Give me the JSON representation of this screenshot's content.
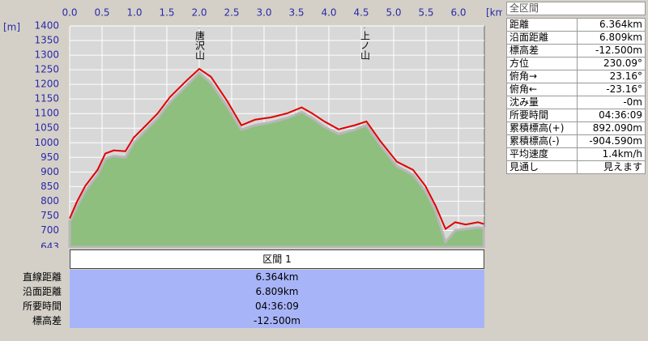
{
  "chart_data": {
    "type": "line",
    "y_label": "[m]",
    "x_label": "[km]",
    "x": [
      0,
      0.11,
      0.24,
      0.43,
      0.55,
      0.68,
      0.86,
      0.99,
      1.18,
      1.36,
      1.55,
      1.8,
      2.0,
      2.18,
      2.43,
      2.65,
      2.86,
      3.11,
      3.36,
      3.58,
      3.74,
      3.93,
      4.15,
      4.4,
      4.58,
      4.8,
      5.05,
      5.3,
      5.49,
      5.65,
      5.8,
      5.95,
      6.11,
      6.3,
      6.39
    ],
    "series": [
      {
        "color": "#8fbf7f",
        "fill": true,
        "values": [
          730,
          780,
          835,
          890,
          945,
          955,
          950,
          1000,
          1045,
          1085,
          1140,
          1195,
          1240,
          1205,
          1125,
          1045,
          1060,
          1070,
          1085,
          1105,
          1085,
          1055,
          1030,
          1045,
          1060,
          990,
          920,
          890,
          835,
          765,
          660,
          700,
          705,
          710,
          708
        ]
      },
      {
        "color": "#e00000",
        "values": [
          741,
          797,
          852,
          907,
          963,
          974,
          971,
          1018,
          1060,
          1101,
          1157,
          1212,
          1253,
          1226,
          1143,
          1060,
          1079,
          1087,
          1101,
          1121,
          1101,
          1073,
          1046,
          1060,
          1073,
          1004,
          935,
          907,
          852,
          783,
          705,
          728,
          720,
          728,
          722
        ]
      }
    ],
    "annotations": [
      {
        "text": "唐沢山",
        "x": 2.0
      },
      {
        "text": "上ノ山",
        "x": 4.55
      }
    ],
    "xlim": [
      0,
      6.4
    ],
    "ylim": [
      643,
      1400
    ],
    "xticks": [
      {
        "value": 0,
        "label": "0.0"
      },
      0.5,
      {
        "value": 1,
        "label": "1.0"
      },
      1.5,
      {
        "value": 2,
        "label": "2.0"
      },
      2.5,
      {
        "value": 3,
        "label": "3.0"
      },
      3.5,
      {
        "value": 4,
        "label": "4.0"
      },
      4.5,
      {
        "value": 5,
        "label": "5.0"
      },
      5.5,
      {
        "value": 6,
        "label": "6.0"
      }
    ],
    "yticks": [
      643,
      700,
      750,
      800,
      850,
      900,
      950,
      1000,
      1050,
      1100,
      1150,
      1200,
      1250,
      1300,
      1350,
      1400
    ],
    "grid": true
  },
  "side_panel": {
    "title": "全区間",
    "rows": [
      [
        "距離",
        "6.364km"
      ],
      [
        "沿面距離",
        "6.809km"
      ],
      [
        "標高差",
        "-12.500m"
      ],
      [
        "方位",
        "230.09°"
      ],
      [
        "俯角→",
        "23.16°"
      ],
      [
        "俯角←",
        "-23.16°"
      ],
      [
        "沈み量",
        "-0m"
      ],
      [
        "所要時間",
        "04:36:09"
      ],
      [
        "累積標高(+)",
        "892.090m"
      ],
      [
        "累積標高(-)",
        "-904.590m"
      ],
      [
        "平均速度",
        "1.4km/h"
      ],
      [
        "見通し",
        "見えます"
      ]
    ]
  },
  "section_table": {
    "header": "区間 1",
    "rows": [
      [
        "直線距離",
        "6.364km"
      ],
      [
        "沿面距離",
        "6.809km"
      ],
      [
        "所要時間",
        "04:36:09"
      ],
      [
        "標高差",
        "-12.500m"
      ]
    ]
  }
}
